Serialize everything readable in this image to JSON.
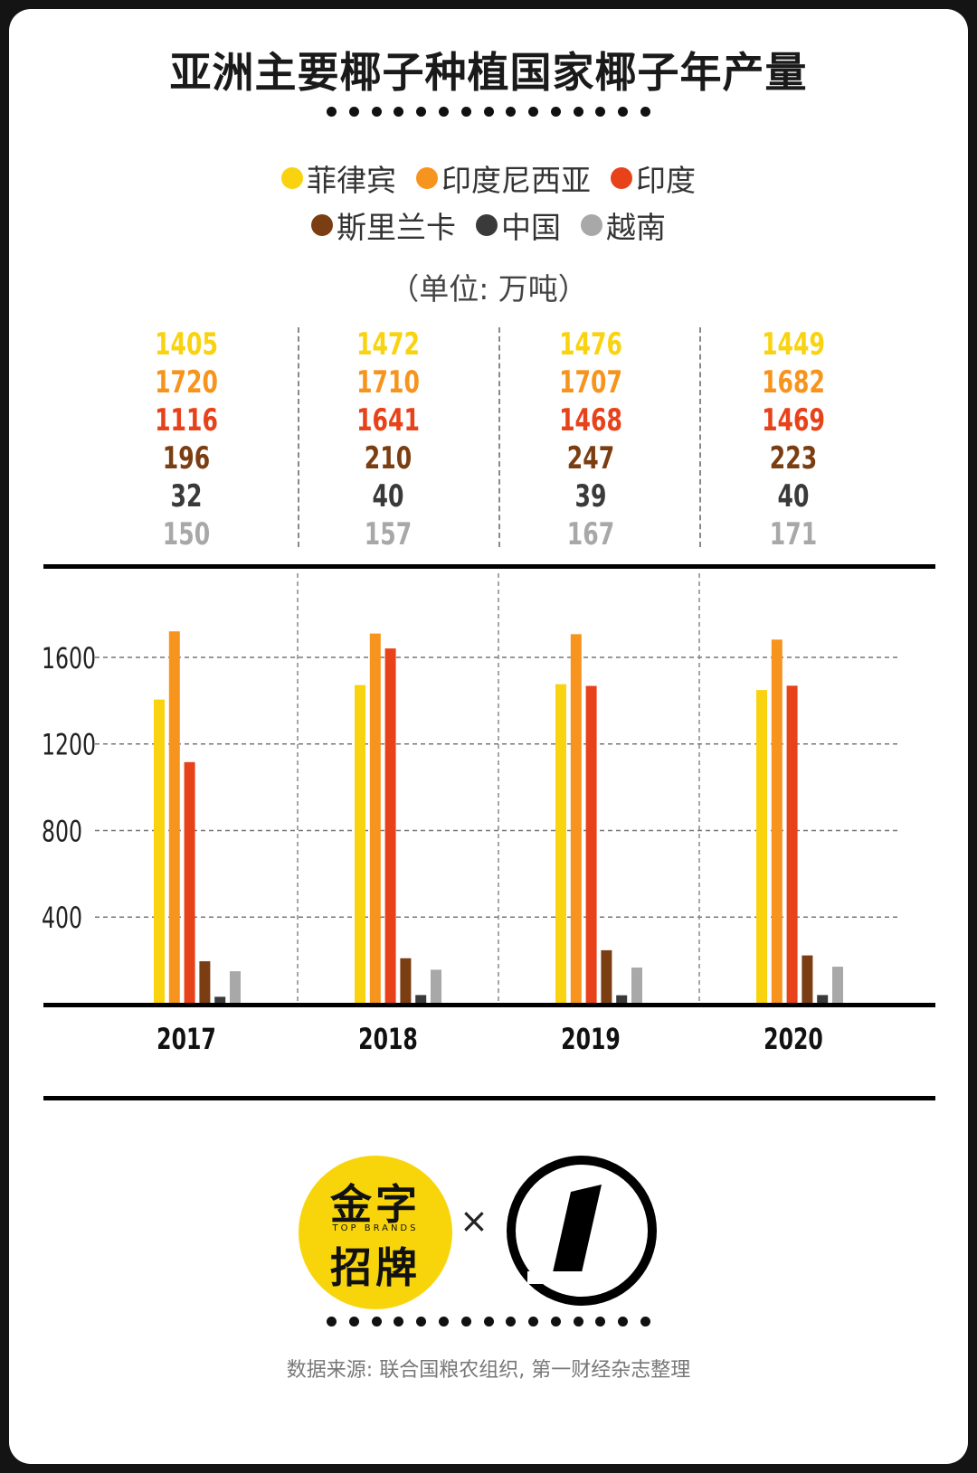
{
  "title": "亚洲主要椰子种植国家椰子年产量",
  "unit_label": "（单位: 万吨）",
  "legend": [
    {
      "name": "菲律宾",
      "color": "#f9d30f"
    },
    {
      "name": "印度尼西亚",
      "color": "#f7941d"
    },
    {
      "name": "印度",
      "color": "#e8421a"
    },
    {
      "name": "斯里兰卡",
      "color": "#7a3e12"
    },
    {
      "name": "中国",
      "color": "#3a3a3a"
    },
    {
      "name": "越南",
      "color": "#a8a8a8"
    }
  ],
  "logos": {
    "left_top": "金字",
    "left_bottom": "招牌",
    "left_sub": "TOP BRANDS",
    "separator": "×"
  },
  "source": "数据来源: 联合国粮农组织, 第一财经杂志整理",
  "chart_data": {
    "type": "bar",
    "title": "亚洲主要椰子种植国家椰子年产量",
    "unit": "万吨",
    "categories": [
      "2017",
      "2018",
      "2019",
      "2020"
    ],
    "y_ticks": [
      "400",
      "800",
      "1200",
      "1600"
    ],
    "ylim": [
      0,
      1800
    ],
    "grid": true,
    "series": [
      {
        "name": "菲律宾",
        "color": "#f9d30f",
        "values": [
          1405,
          1472,
          1476,
          1449
        ],
        "labels": [
          "1405",
          "1472",
          "1476",
          "1449"
        ]
      },
      {
        "name": "印度尼西亚",
        "color": "#f7941d",
        "values": [
          1720,
          1710,
          1707,
          1682
        ],
        "labels": [
          "1720",
          "1710",
          "1707",
          "1682"
        ]
      },
      {
        "name": "印度",
        "color": "#e8421a",
        "values": [
          1116,
          1641,
          1468,
          1469
        ],
        "labels": [
          "1116",
          "1641",
          "1468",
          "1469"
        ]
      },
      {
        "name": "斯里兰卡",
        "color": "#7a3e12",
        "values": [
          196,
          210,
          247,
          223
        ],
        "labels": [
          "196",
          "210",
          "247",
          "223"
        ]
      },
      {
        "name": "中国",
        "color": "#3a3a3a",
        "values": [
          32,
          40,
          39,
          40
        ],
        "labels": [
          "32",
          "40",
          "39",
          "40"
        ]
      },
      {
        "name": "越南",
        "color": "#a8a8a8",
        "values": [
          150,
          157,
          167,
          171
        ],
        "labels": [
          "150",
          "157",
          "167",
          "171"
        ]
      }
    ]
  }
}
